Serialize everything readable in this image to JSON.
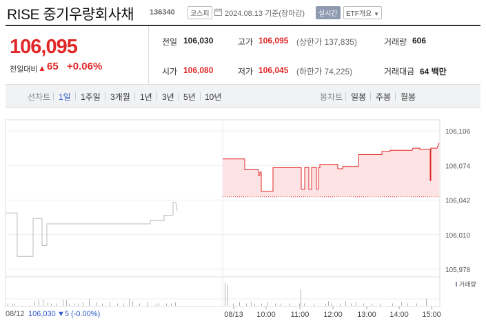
{
  "header": {
    "name": "RISE 중기우량회사채",
    "code": "136340",
    "market_badge": "코스피",
    "date": "2024.08.13 기준(장마감)",
    "live_badge": "실시간",
    "etf_badge": "ETF개요"
  },
  "price": {
    "current": "106,095",
    "change_label": "전일대비",
    "change_value": "65",
    "change_pct": "+0.06%"
  },
  "stats": {
    "prev_close_label": "전일",
    "prev_close": "106,030",
    "high_label": "고가",
    "high": "106,095",
    "upper_limit": "(상한가 137,835)",
    "volume_label": "거래량",
    "volume": "606",
    "open_label": "시가",
    "open": "106,080",
    "low_label": "저가",
    "low": "106,045",
    "lower_limit": "(하한가 74,225)",
    "amount_label": "거래대금",
    "amount": "64 백만"
  },
  "periods": {
    "line_label": "선차트",
    "items": [
      "1일",
      "1주일",
      "3개월",
      "1년",
      "3년",
      "5년",
      "10년"
    ],
    "active": "1일",
    "candle_label": "봉차트",
    "candle_items": [
      "일봉",
      "주봉",
      "월봉"
    ]
  },
  "chart_data": {
    "type": "line",
    "ylim": [
      105970,
      106110
    ],
    "y_ticks": [
      "106,106",
      "106,074",
      "106,042",
      "106,010",
      "105,978"
    ],
    "y_tick_values": [
      106106,
      106074,
      106042,
      106010,
      105978
    ],
    "x_ticks": [
      "08/12",
      "08/13",
      "10:00",
      "11:00",
      "12:00",
      "13:00",
      "14:00",
      "15:00"
    ],
    "volume_label": "거래량",
    "prev_day_label": "08/12",
    "prev_day_close": "106,030",
    "prev_day_change": "▼5 (-0.00%)",
    "reference_price": 106045,
    "series": [
      {
        "day": "08/12",
        "color": "#bbbbbb",
        "points": [
          [
            0,
            106030
          ],
          [
            17,
            106030
          ],
          [
            17,
            105990
          ],
          [
            40,
            105990
          ],
          [
            40,
            106025
          ],
          [
            53,
            106025
          ],
          [
            53,
            106000
          ],
          [
            60,
            106000
          ],
          [
            60,
            106020
          ],
          [
            165,
            106020
          ],
          [
            210,
            106020
          ],
          [
            210,
            106023
          ],
          [
            230,
            106023
          ],
          [
            230,
            106028
          ],
          [
            243,
            106028
          ],
          [
            243,
            106040
          ],
          [
            247,
            106040
          ],
          [
            249,
            106032
          ]
        ]
      },
      {
        "day": "08/13",
        "color": "#e12727",
        "points": [
          [
            0,
            106080
          ],
          [
            32,
            106080
          ],
          [
            32,
            106070
          ],
          [
            52,
            106070
          ],
          [
            52,
            106065
          ],
          [
            54,
            106065
          ],
          [
            54,
            106068
          ],
          [
            56,
            106068
          ],
          [
            56,
            106050
          ],
          [
            73,
            106050
          ],
          [
            73,
            106072
          ],
          [
            114,
            106072
          ],
          [
            114,
            106052
          ],
          [
            119,
            106052
          ],
          [
            119,
            106072
          ],
          [
            125,
            106072
          ],
          [
            125,
            106052
          ],
          [
            129,
            106052
          ],
          [
            129,
            106072
          ],
          [
            136,
            106072
          ],
          [
            136,
            106052
          ],
          [
            139,
            106052
          ],
          [
            139,
            106072
          ],
          [
            141,
            106072
          ],
          [
            141,
            106075
          ],
          [
            167,
            106075
          ],
          [
            167,
            106071
          ],
          [
            174,
            106071
          ],
          [
            174,
            106073
          ],
          [
            197,
            106073
          ],
          [
            197,
            106084
          ],
          [
            231,
            106084
          ],
          [
            231,
            106087
          ],
          [
            243,
            106087
          ],
          [
            243,
            106088
          ],
          [
            260,
            106088
          ],
          [
            264,
            106088
          ],
          [
            275,
            106088
          ],
          [
            276,
            106090
          ],
          [
            286,
            106090
          ],
          [
            286,
            106089
          ],
          [
            301,
            106089
          ],
          [
            301,
            106060
          ],
          [
            302,
            106060
          ],
          [
            302,
            106090
          ],
          [
            311,
            106090
          ],
          [
            314,
            106095
          ]
        ]
      }
    ],
    "volume": [
      [
        3,
        2
      ],
      [
        10,
        2
      ],
      [
        13,
        2
      ],
      [
        42,
        4
      ],
      [
        48,
        5
      ],
      [
        54,
        5
      ],
      [
        61,
        3
      ],
      [
        66,
        2
      ],
      [
        74,
        2
      ],
      [
        83,
        5
      ],
      [
        88,
        5
      ],
      [
        92,
        2
      ],
      [
        99,
        2
      ],
      [
        105,
        2
      ],
      [
        112,
        3
      ],
      [
        121,
        6
      ],
      [
        131,
        3
      ],
      [
        140,
        2
      ],
      [
        151,
        3
      ],
      [
        162,
        2
      ],
      [
        171,
        2
      ],
      [
        179,
        6
      ],
      [
        184,
        4
      ],
      [
        194,
        2
      ],
      [
        205,
        3
      ],
      [
        218,
        2
      ],
      [
        222,
        2
      ],
      [
        233,
        2
      ],
      [
        240,
        2
      ],
      [
        246,
        3
      ],
      [
        318,
        20
      ],
      [
        322,
        18
      ],
      [
        330,
        2
      ],
      [
        339,
        3
      ],
      [
        349,
        2
      ],
      [
        356,
        3
      ],
      [
        361,
        2
      ],
      [
        371,
        2
      ],
      [
        380,
        3
      ],
      [
        391,
        2
      ],
      [
        399,
        2
      ],
      [
        411,
        2
      ],
      [
        426,
        2
      ],
      [
        428,
        14
      ],
      [
        433,
        2
      ],
      [
        447,
        2
      ],
      [
        464,
        2
      ],
      [
        468,
        4
      ],
      [
        472,
        2
      ],
      [
        485,
        2
      ],
      [
        493,
        4
      ],
      [
        501,
        2
      ],
      [
        508,
        3
      ],
      [
        519,
        2
      ],
      [
        531,
        2
      ],
      [
        543,
        2
      ],
      [
        561,
        2
      ],
      [
        574,
        3
      ],
      [
        583,
        2
      ],
      [
        596,
        2
      ],
      [
        610,
        6
      ]
    ]
  }
}
